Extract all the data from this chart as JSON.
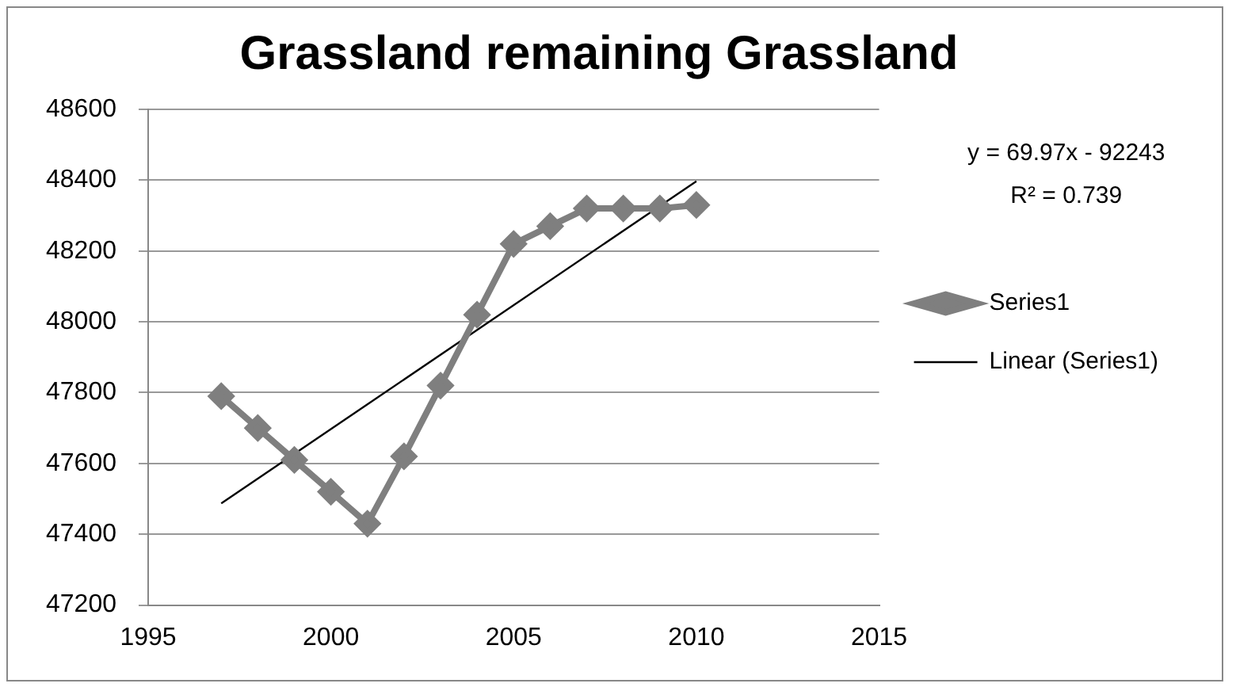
{
  "chart_data": {
    "type": "line",
    "title": "Grassland remaining Grassland",
    "x": [
      1997,
      1998,
      1999,
      2000,
      2001,
      2002,
      2003,
      2004,
      2005,
      2006,
      2007,
      2008,
      2009,
      2010
    ],
    "series": [
      {
        "name": "Series1",
        "color": "#7f7f7f",
        "marker": "diamond",
        "values": [
          47790,
          47700,
          47610,
          47520,
          47430,
          47620,
          47820,
          48020,
          48220,
          48270,
          48320,
          48320,
          48320,
          48330
        ]
      },
      {
        "name": "Linear (Series1)",
        "color": "#000000",
        "marker": "none",
        "x": [
          1997,
          2010
        ],
        "values": [
          47487,
          48397
        ]
      }
    ],
    "xlim": [
      1995,
      2015
    ],
    "xticks": [
      1995,
      2000,
      2005,
      2010,
      2015
    ],
    "ylim": [
      47200,
      48600
    ],
    "yticks": [
      47200,
      47400,
      47600,
      47800,
      48000,
      48200,
      48400,
      48600
    ],
    "grid": "y",
    "legend": "right",
    "annotations": [
      "y = 69.97x - 92243",
      "R² = 0.739"
    ]
  }
}
